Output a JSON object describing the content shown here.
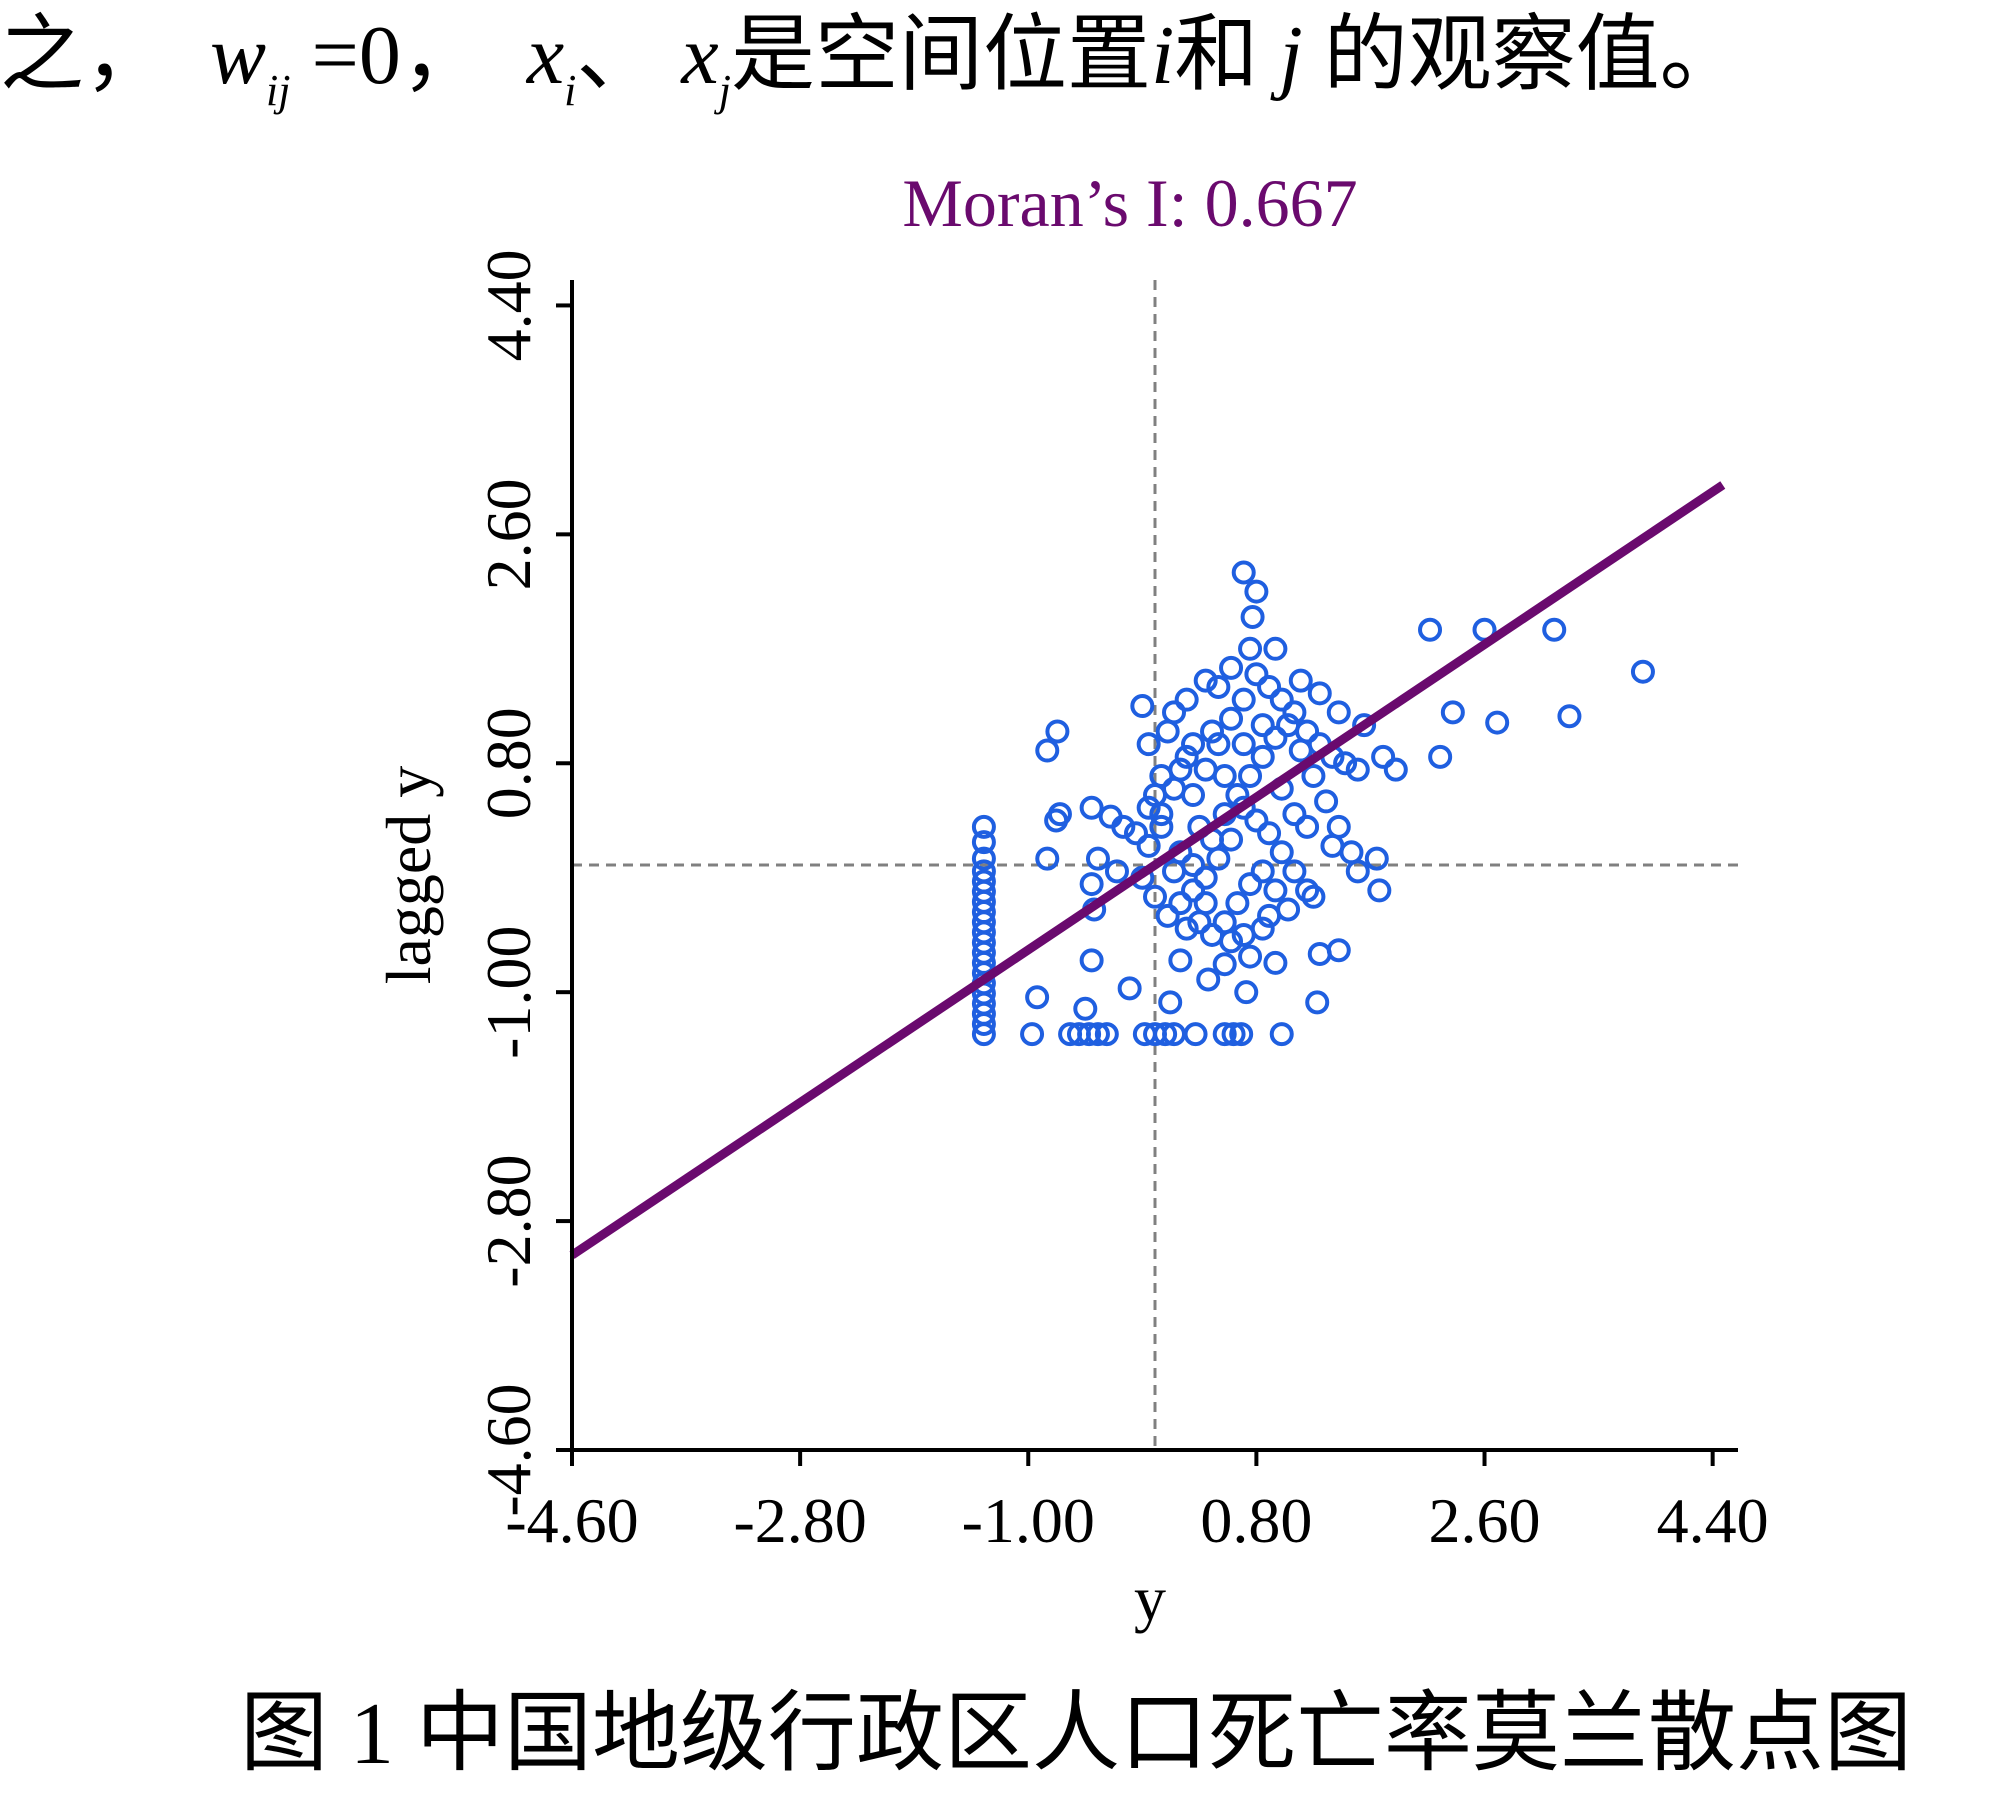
{
  "top_text": {
    "prefix": "之，",
    "w": "w",
    "w_sub": "ij",
    "eq": "=0，",
    "xi": "x",
    "xi_sub": "i",
    "sep": "、",
    "xj": "x",
    "xj_sub": "j",
    "mid": "是空间位置",
    "i": "i",
    "he": "和",
    "j": "j",
    "suffix": "的观察值。"
  },
  "caption": "图 1  中国地级行政区人口死亡率莫兰散点图",
  "colors": {
    "title": "#6a0a6e",
    "points": "#1f5fe0",
    "line": "#6a0a6e",
    "dashed": "#808080"
  },
  "chart_data": {
    "type": "scatter",
    "title": "Moran’s  I: 0.667",
    "xlabel": "y",
    "ylabel": "lagged y",
    "xlim": [
      -4.6,
      4.6
    ],
    "ylim": [
      -4.6,
      4.6
    ],
    "x_ticks": [
      "-4.60",
      "-2.80",
      "-1.00",
      "0.80",
      "2.60",
      "4.40"
    ],
    "y_ticks": [
      "-4.60",
      "-2.80",
      "-1.00",
      "0.80",
      "2.60",
      "4.40"
    ],
    "x_tick_values": [
      -4.6,
      -2.8,
      -1.0,
      0.8,
      2.6,
      4.4
    ],
    "y_tick_values": [
      -4.6,
      -2.8,
      -1.0,
      0.8,
      2.6,
      4.4
    ],
    "mean_x": 0.0,
    "mean_y": 0.0,
    "regression": {
      "slope": 0.667,
      "intercept": 0.0,
      "x_range": [
        -4.6,
        4.6
      ]
    },
    "points": [
      [
        -1.35,
        -1.33
      ],
      [
        -1.35,
        -1.25
      ],
      [
        -1.35,
        -1.17
      ],
      [
        -1.35,
        -1.09
      ],
      [
        -1.35,
        -1.01
      ],
      [
        -1.35,
        -0.93
      ],
      [
        -1.35,
        -0.85
      ],
      [
        -1.35,
        -0.77
      ],
      [
        -1.35,
        -0.69
      ],
      [
        -1.35,
        -0.61
      ],
      [
        -1.35,
        -0.53
      ],
      [
        -1.35,
        -0.45
      ],
      [
        -1.35,
        -0.37
      ],
      [
        -1.35,
        -0.29
      ],
      [
        -1.35,
        -0.21
      ],
      [
        -1.35,
        -0.13
      ],
      [
        -1.35,
        -0.05
      ],
      [
        -1.35,
        0.05
      ],
      [
        -1.35,
        0.18
      ],
      [
        -1.35,
        0.3
      ],
      [
        -0.97,
        -1.33
      ],
      [
        -0.67,
        -1.33
      ],
      [
        -0.6,
        -1.33
      ],
      [
        -0.52,
        -1.33
      ],
      [
        -0.45,
        -1.33
      ],
      [
        -0.38,
        -1.33
      ],
      [
        -0.08,
        -1.33
      ],
      [
        0.0,
        -1.33
      ],
      [
        0.08,
        -1.33
      ],
      [
        0.15,
        -1.33
      ],
      [
        0.32,
        -1.33
      ],
      [
        0.55,
        -1.33
      ],
      [
        0.62,
        -1.33
      ],
      [
        0.68,
        -1.33
      ],
      [
        1.0,
        -1.33
      ],
      [
        -0.93,
        -1.04
      ],
      [
        -0.55,
        -1.13
      ],
      [
        -0.2,
        -0.97
      ],
      [
        0.12,
        -1.08
      ],
      [
        0.42,
        -0.9
      ],
      [
        0.72,
        -1.0
      ],
      [
        1.28,
        -1.08
      ],
      [
        0.95,
        -0.77
      ],
      [
        1.3,
        -0.7
      ],
      [
        1.45,
        -0.67
      ],
      [
        -0.5,
        -0.75
      ],
      [
        0.2,
        -0.75
      ],
      [
        0.55,
        -0.78
      ],
      [
        0.75,
        -0.72
      ],
      [
        -0.85,
        0.05
      ],
      [
        -0.78,
        0.35
      ],
      [
        -0.75,
        0.4
      ],
      [
        -0.85,
        0.9
      ],
      [
        -0.77,
        1.05
      ],
      [
        -0.5,
        0.45
      ],
      [
        -0.35,
        0.38
      ],
      [
        -0.25,
        0.3
      ],
      [
        -0.45,
        0.05
      ],
      [
        -0.5,
        -0.15
      ],
      [
        -0.48,
        -0.35
      ],
      [
        -0.3,
        -0.05
      ],
      [
        -0.15,
        0.25
      ],
      [
        -0.05,
        0.15
      ],
      [
        0.05,
        0.4
      ],
      [
        0.15,
        0.6
      ],
      [
        0.25,
        0.85
      ],
      [
        0.1,
        1.05
      ],
      [
        -0.1,
        1.25
      ],
      [
        -0.05,
        0.95
      ],
      [
        0.05,
        0.7
      ],
      [
        0.3,
        0.55
      ],
      [
        0.4,
        0.75
      ],
      [
        0.5,
        0.95
      ],
      [
        0.6,
        1.15
      ],
      [
        0.7,
        1.3
      ],
      [
        0.8,
        1.5
      ],
      [
        0.9,
        1.4
      ],
      [
        1.0,
        1.3
      ],
      [
        1.1,
        1.2
      ],
      [
        1.2,
        1.05
      ],
      [
        1.3,
        0.95
      ],
      [
        1.4,
        0.85
      ],
      [
        1.5,
        0.8
      ],
      [
        1.6,
        0.75
      ],
      [
        0.5,
        1.4
      ],
      [
        0.45,
        1.05
      ],
      [
        0.35,
        0.3
      ],
      [
        0.45,
        0.2
      ],
      [
        0.55,
        0.4
      ],
      [
        0.65,
        0.55
      ],
      [
        0.75,
        0.7
      ],
      [
        0.85,
        0.85
      ],
      [
        0.95,
        1.0
      ],
      [
        1.05,
        1.1
      ],
      [
        1.15,
        0.9
      ],
      [
        1.25,
        0.7
      ],
      [
        1.35,
        0.5
      ],
      [
        1.45,
        0.3
      ],
      [
        1.55,
        0.1
      ],
      [
        1.2,
        -0.2
      ],
      [
        1.1,
        -0.05
      ],
      [
        1.0,
        0.1
      ],
      [
        0.9,
        0.25
      ],
      [
        0.8,
        0.35
      ],
      [
        0.7,
        0.45
      ],
      [
        0.6,
        0.2
      ],
      [
        0.5,
        0.05
      ],
      [
        0.4,
        -0.1
      ],
      [
        0.3,
        -0.2
      ],
      [
        0.2,
        -0.3
      ],
      [
        0.1,
        -0.4
      ],
      [
        0.0,
        -0.25
      ],
      [
        -0.1,
        -0.1
      ],
      [
        0.2,
        0.1
      ],
      [
        0.3,
        0.0
      ],
      [
        0.4,
        -0.3
      ],
      [
        0.55,
        -0.45
      ],
      [
        0.65,
        -0.3
      ],
      [
        0.75,
        -0.15
      ],
      [
        0.85,
        -0.05
      ],
      [
        0.95,
        -0.2
      ],
      [
        1.05,
        -0.35
      ],
      [
        0.7,
        -0.55
      ],
      [
        0.6,
        -0.6
      ],
      [
        0.45,
        -0.55
      ],
      [
        0.35,
        -0.45
      ],
      [
        0.25,
        -0.5
      ],
      [
        0.85,
        -0.5
      ],
      [
        0.9,
        -0.4
      ],
      [
        1.25,
        -0.25
      ],
      [
        1.4,
        0.15
      ],
      [
        1.6,
        -0.05
      ],
      [
        1.75,
        0.05
      ],
      [
        1.9,
        0.75
      ],
      [
        1.8,
        0.85
      ],
      [
        1.65,
        1.1
      ],
      [
        1.45,
        1.2
      ],
      [
        1.3,
        1.35
      ],
      [
        1.15,
        1.45
      ],
      [
        0.95,
        1.7
      ],
      [
        0.75,
        1.7
      ],
      [
        0.6,
        1.55
      ],
      [
        0.4,
        1.45
      ],
      [
        0.25,
        1.3
      ],
      [
        0.15,
        1.2
      ],
      [
        0.0,
        0.55
      ],
      [
        -0.05,
        0.45
      ],
      [
        0.05,
        0.3
      ],
      [
        0.15,
        -0.05
      ],
      [
        0.55,
        0.7
      ],
      [
        0.7,
        0.95
      ],
      [
        0.85,
        1.1
      ],
      [
        1.0,
        0.6
      ],
      [
        1.1,
        0.4
      ],
      [
        1.2,
        0.3
      ],
      [
        0.3,
        0.95
      ],
      [
        0.2,
        0.75
      ],
      [
        0.8,
        2.15
      ],
      [
        0.7,
        2.3
      ],
      [
        0.77,
        1.95
      ],
      [
        2.17,
        1.85
      ],
      [
        2.6,
        1.85
      ],
      [
        3.15,
        1.85
      ],
      [
        3.85,
        1.52
      ],
      [
        2.35,
        1.2
      ],
      [
        2.7,
        1.12
      ],
      [
        3.27,
        1.17
      ],
      [
        2.25,
        0.85
      ],
      [
        1.77,
        -0.2
      ]
    ]
  }
}
